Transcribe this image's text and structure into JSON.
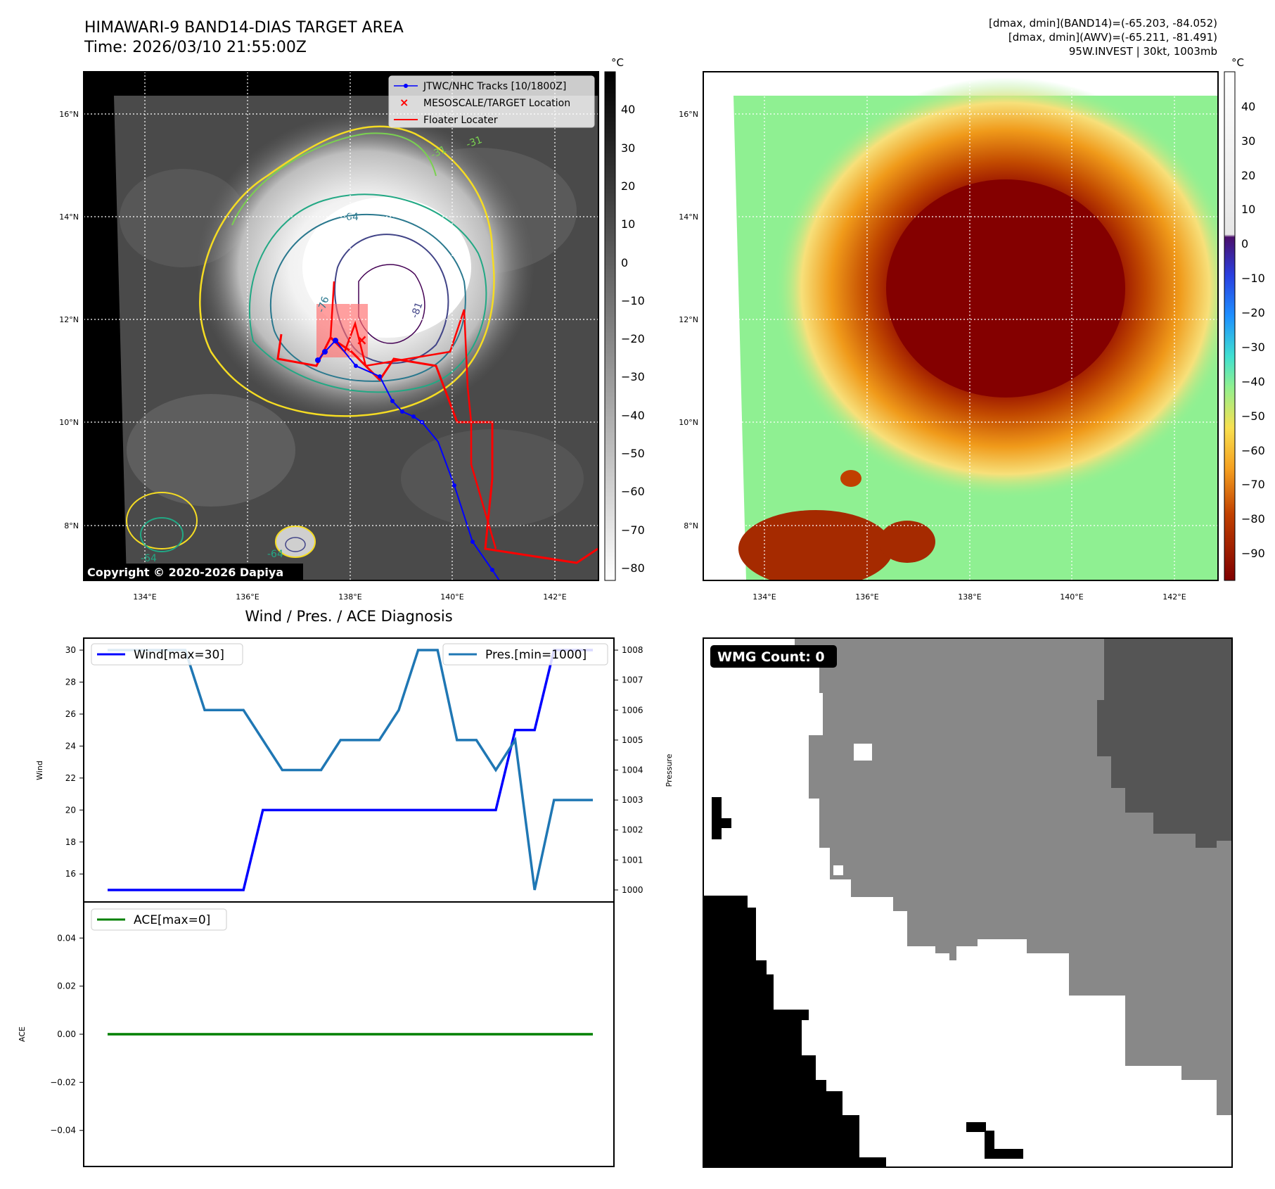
{
  "header": {
    "title_line1": "HIMAWARI-9 BAND14-DIAS TARGET AREA",
    "title_line2": "Time: 2026/03/10 21:55:00Z",
    "info_line1": "[dmax, dmin](BAND14)=(-65.203, -84.052)",
    "info_line2": "[dmax, dmin](AWV)=(-65.211, -81.491)",
    "info_line3": "95W.INVEST | 30kt, 1003mb"
  },
  "map": {
    "lat_labels": [
      "16°N",
      "14°N",
      "12°N",
      "10°N",
      "8°N"
    ],
    "lon_labels": [
      "134°E",
      "136°E",
      "138°E",
      "140°E",
      "142°E"
    ],
    "copyright": "Copyright © 2020-2026 Dapiya",
    "legend": {
      "tracks": "JTWC/NHC Tracks [10/1800Z]",
      "target": "MESOSCALE/TARGET Location",
      "floater": "Floater Locater"
    },
    "contour_labels": [
      "-76",
      "-64",
      "-81",
      "-31",
      "-31",
      "-64",
      "-64"
    ],
    "colorbar1_unit": "°C",
    "colorbar1_ticks": [
      "40",
      "30",
      "20",
      "10",
      "0",
      "−10",
      "−20",
      "−30",
      "−40",
      "−50",
      "−60",
      "−70",
      "−80"
    ],
    "colorbar2_unit": "°C",
    "colorbar2_ticks": [
      "40",
      "30",
      "20",
      "10",
      "0",
      "−10",
      "−20",
      "−30",
      "−40",
      "−50",
      "−60",
      "−70",
      "−80",
      "−90"
    ]
  },
  "diag": {
    "title": "Wind / Pres. / ACE Diagnosis",
    "wind_axis_label": "Wind",
    "pressure_axis_label": "Pressure",
    "ace_axis_label": "ACE",
    "wind_legend": "Wind[max=30]",
    "pres_legend": "Pres.[min=1000]",
    "ace_legend": "ACE[max=0]",
    "wmg_label": "WMG Count: 0"
  },
  "colors": {
    "wind": "#0000ff",
    "pressure": "#1f77b4",
    "ace": "#008000",
    "track": "#0000ff",
    "floater": "#ff0000"
  },
  "chart_data": [
    {
      "type": "line",
      "title": "Wind / Pres. / ACE Diagnosis",
      "x": [
        0,
        1,
        2,
        3,
        4,
        5,
        6,
        7,
        8,
        9,
        10,
        11,
        12,
        13,
        14,
        15,
        16,
        17,
        18,
        19,
        20,
        21,
        22,
        23,
        24,
        25
      ],
      "series": [
        {
          "name": "Wind[max=30]",
          "axis": "left",
          "values": [
            15,
            15,
            15,
            15,
            15,
            15,
            15,
            15,
            20,
            20,
            20,
            20,
            20,
            20,
            20,
            20,
            20,
            20,
            20,
            20,
            20,
            25,
            25,
            30,
            30,
            30
          ]
        },
        {
          "name": "Pres.[min=1000]",
          "axis": "right",
          "values": [
            1008,
            1008,
            1008,
            1008,
            1008,
            1006,
            1006,
            1006,
            1005,
            1004,
            1004,
            1004,
            1005,
            1005,
            1005,
            1006,
            1008,
            1008,
            1005,
            1005,
            1004,
            1005,
            1000,
            1003,
            1003,
            1003
          ]
        }
      ],
      "ylabel": "Wind",
      "ylim": [
        14.25,
        30.75
      ],
      "yticks": [
        16,
        18,
        20,
        22,
        24,
        26,
        28,
        30
      ],
      "y2label": "Pressure",
      "y2lim": [
        999.6,
        1008.4
      ],
      "y2ticks": [
        1000,
        1001,
        1002,
        1003,
        1004,
        1005,
        1006,
        1007,
        1008
      ]
    },
    {
      "type": "line",
      "x": [
        0,
        25
      ],
      "series": [
        {
          "name": "ACE[max=0]",
          "values": [
            0,
            0
          ]
        }
      ],
      "ylabel": "ACE",
      "ylim": [
        -0.055,
        0.055
      ],
      "yticks": [
        0.04,
        0.02,
        0.0,
        -0.02,
        -0.04
      ],
      "ytick_labels": [
        "0.04",
        "0.02",
        "0.00",
        "−0.02",
        "−0.04"
      ]
    }
  ]
}
